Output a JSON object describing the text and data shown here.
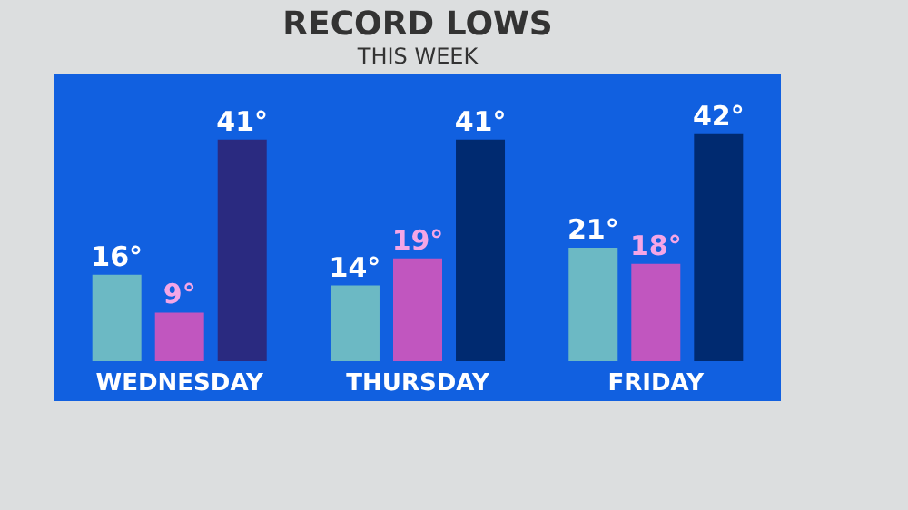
{
  "chart_data": {
    "type": "bar",
    "title": "RECORD LOWS",
    "subtitle": "THIS WEEK",
    "categories": [
      "WEDNESDAY",
      "THURSDAY",
      "FRIDAY"
    ],
    "series": [
      {
        "color": "#6cb9c4",
        "values": [
          16,
          14,
          21
        ],
        "value_labels": [
          "16°",
          "14°",
          "21°"
        ]
      },
      {
        "color": "#c156bf",
        "values": [
          9,
          19,
          18
        ],
        "value_labels": [
          "9°",
          "19°",
          "18°"
        ]
      },
      {
        "colors": [
          "#2a2a80",
          "#002a70",
          "#002a70"
        ],
        "values": [
          41,
          41,
          42
        ],
        "value_labels": [
          "41°",
          "41°",
          "42°"
        ]
      }
    ],
    "orientation": "vertical"
  }
}
